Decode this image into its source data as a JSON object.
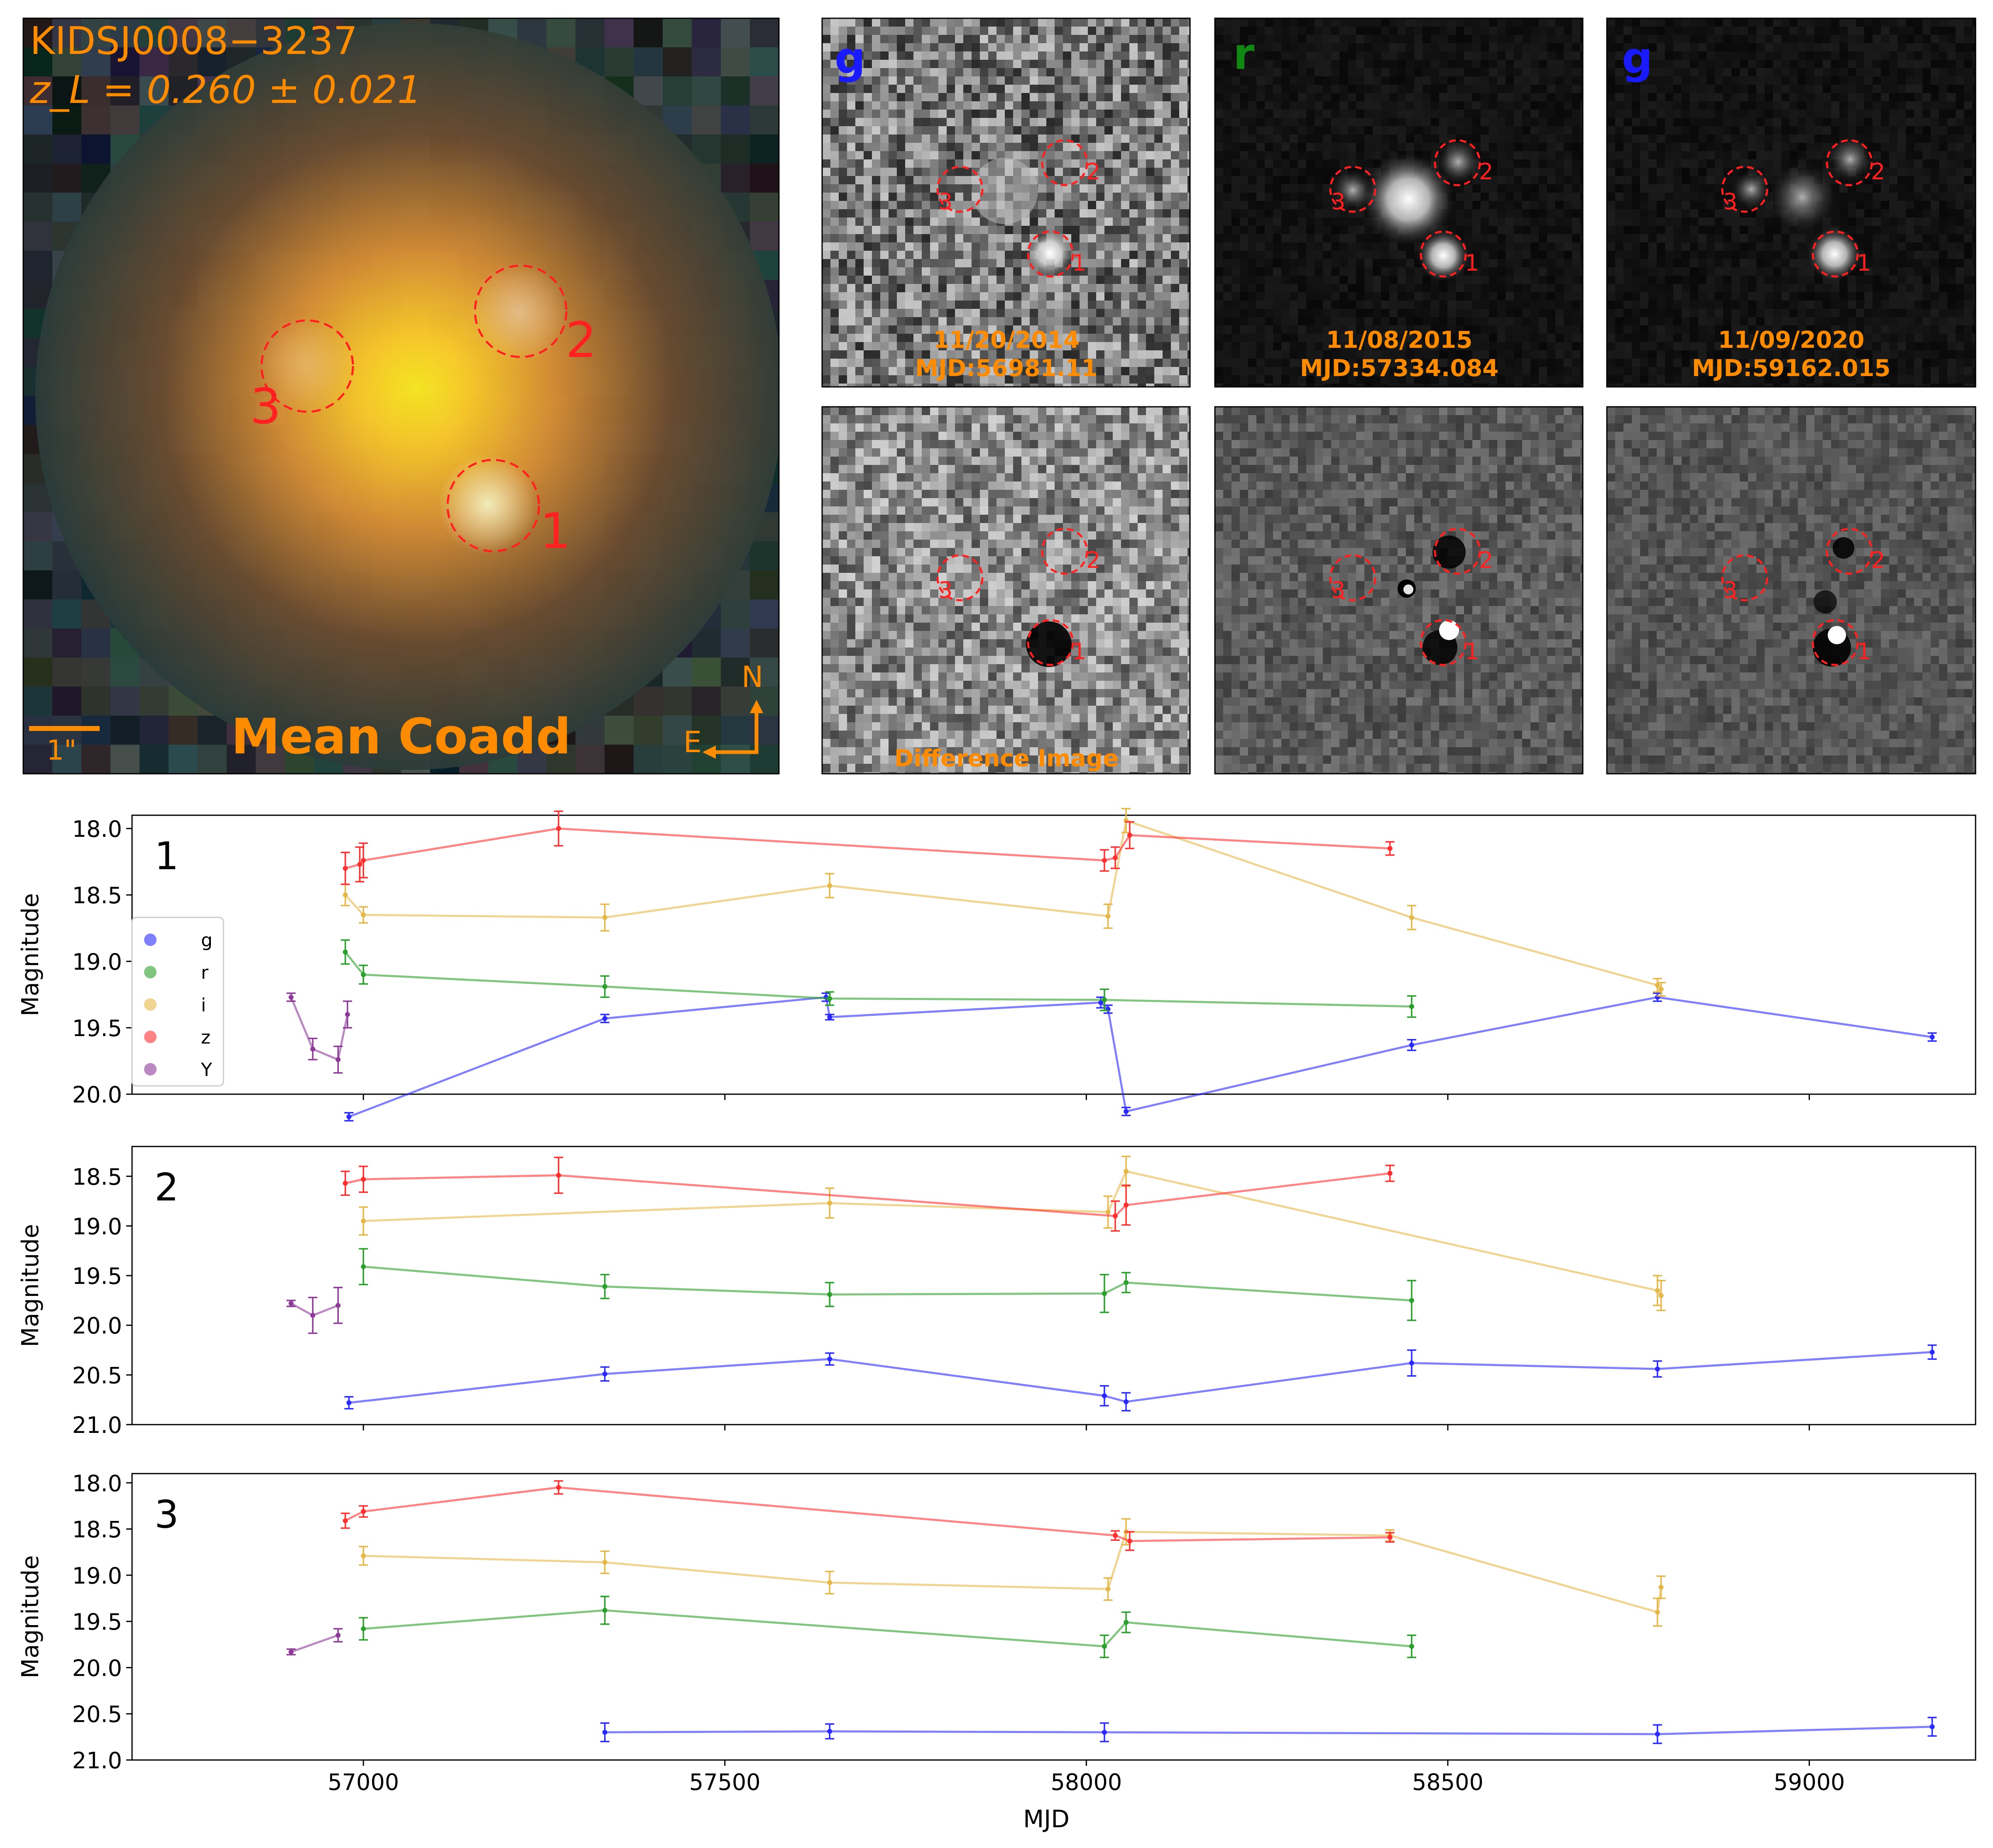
{
  "chart_data": [
    {
      "type": "image",
      "name_shown": "KIDSJ0008−3237",
      "redshift_label": "z_L = 0.260 ± 0.021",
      "panel_label": "Mean Coadd",
      "scale_label": "1\"",
      "compass": {
        "north": "N",
        "east": "E"
      },
      "markers": [
        "1",
        "2",
        "3"
      ],
      "colors": {
        "label": "#ff8c00",
        "marker": "#ff2020"
      }
    },
    {
      "type": "image",
      "band": "g",
      "band_color": "#1a1aff",
      "date": "11/20/2014",
      "mjd": "MJD:56981.11",
      "difference_label": "Difference Image",
      "markers": [
        "1",
        "2",
        "3"
      ]
    },
    {
      "type": "image",
      "band": "r",
      "band_color": "#118811",
      "date": "11/08/2015",
      "mjd": "MJD:57334.084",
      "markers": [
        "1",
        "2",
        "3"
      ]
    },
    {
      "type": "image",
      "band": "g",
      "band_color": "#1a1aff",
      "date": "11/09/2020",
      "mjd": "MJD:59162.015",
      "markers": [
        "1",
        "2",
        "3"
      ]
    },
    {
      "type": "line",
      "xlabel": "MJD",
      "ylabel": "Magnitude",
      "xlim": [
        56680,
        59230
      ],
      "x_ticks": [
        "57000",
        "57500",
        "58000",
        "58500",
        "59000"
      ],
      "legend": {
        "placement": "left",
        "entries": [
          "g",
          "r",
          "i",
          "z",
          "Y"
        ]
      },
      "band_colors": {
        "g": "#2b2bff",
        "r": "#2ca02c",
        "i": "#e6b84a",
        "z": "#ff3030",
        "Y": "#8e3a97"
      },
      "panels": [
        {
          "label": "1",
          "ylim": [
            20.0,
            17.9
          ],
          "y_ticks": [
            "18.0",
            "18.5",
            "19.0",
            "19.5",
            "20.0"
          ],
          "series": {
            "g": [
              [
                56980,
                20.17,
                0.03
              ],
              [
                57334,
                19.43,
                0.03
              ],
              [
                57640,
                19.27,
                0.03
              ],
              [
                57645,
                19.42,
                0.02
              ],
              [
                58020,
                19.31,
                0.04
              ],
              [
                58030,
                19.36,
                0.03
              ],
              [
                58055,
                20.13,
                0.03
              ],
              [
                58450,
                19.63,
                0.04
              ],
              [
                58790,
                19.27,
                0.03
              ],
              [
                59170,
                19.57,
                0.03
              ]
            ],
            "r": [
              [
                56975,
                18.93,
                0.09
              ],
              [
                57000,
                19.1,
                0.07
              ],
              [
                57334,
                19.19,
                0.08
              ],
              [
                57645,
                19.28,
                0.05
              ],
              [
                58025,
                19.29,
                0.08
              ],
              [
                58450,
                19.34,
                0.08
              ]
            ],
            "i": [
              [
                56975,
                18.5,
                0.08
              ],
              [
                57000,
                18.65,
                0.06
              ],
              [
                57334,
                18.67,
                0.1
              ],
              [
                57645,
                18.43,
                0.09
              ],
              [
                58030,
                18.66,
                0.09
              ],
              [
                58055,
                17.94,
                0.09
              ],
              [
                58450,
                18.67,
                0.09
              ],
              [
                58790,
                19.18,
                0.05
              ],
              [
                58795,
                19.21,
                0.05
              ]
            ],
            "z": [
              [
                56975,
                18.3,
                0.12
              ],
              [
                56995,
                18.27,
                0.13
              ],
              [
                57000,
                18.24,
                0.13
              ],
              [
                57270,
                18.0,
                0.13
              ],
              [
                58025,
                18.24,
                0.08
              ],
              [
                58040,
                18.22,
                0.08
              ],
              [
                58060,
                18.05,
                0.1
              ],
              [
                58420,
                18.15,
                0.05
              ]
            ],
            "Y": [
              [
                56900,
                19.27,
                0.03
              ],
              [
                56930,
                19.66,
                0.08
              ],
              [
                56965,
                19.74,
                0.1
              ],
              [
                56978,
                19.4,
                0.1
              ]
            ]
          }
        },
        {
          "label": "2",
          "ylim": [
            21.0,
            18.2
          ],
          "y_ticks": [
            "18.5",
            "19.0",
            "19.5",
            "20.0",
            "20.5",
            "21.0"
          ],
          "series": {
            "g": [
              [
                56980,
                20.78,
                0.06
              ],
              [
                57334,
                20.49,
                0.07
              ],
              [
                57645,
                20.34,
                0.06
              ],
              [
                58025,
                20.71,
                0.1
              ],
              [
                58055,
                20.77,
                0.09
              ],
              [
                58450,
                20.38,
                0.13
              ],
              [
                58790,
                20.44,
                0.08
              ],
              [
                59170,
                20.27,
                0.07
              ]
            ],
            "r": [
              [
                57000,
                19.41,
                0.18
              ],
              [
                57334,
                19.61,
                0.12
              ],
              [
                57645,
                19.69,
                0.12
              ],
              [
                58025,
                19.68,
                0.19
              ],
              [
                58055,
                19.57,
                0.1
              ],
              [
                58450,
                19.75,
                0.2
              ]
            ],
            "i": [
              [
                57000,
                18.95,
                0.14
              ],
              [
                57645,
                18.77,
                0.15
              ],
              [
                58030,
                18.86,
                0.16
              ],
              [
                58055,
                18.45,
                0.15
              ],
              [
                58790,
                19.65,
                0.15
              ],
              [
                58795,
                19.7,
                0.15
              ]
            ],
            "z": [
              [
                56975,
                18.57,
                0.12
              ],
              [
                57000,
                18.53,
                0.13
              ],
              [
                57270,
                18.49,
                0.18
              ],
              [
                58040,
                18.9,
                0.15
              ],
              [
                58055,
                18.79,
                0.2
              ],
              [
                58420,
                18.47,
                0.08
              ]
            ],
            "Y": [
              [
                56900,
                19.78,
                0.03
              ],
              [
                56930,
                19.9,
                0.18
              ],
              [
                56965,
                19.8,
                0.18
              ]
            ]
          }
        },
        {
          "label": "3",
          "ylim": [
            21.0,
            17.9
          ],
          "y_ticks": [
            "18.0",
            "18.5",
            "19.0",
            "19.5",
            "20.0",
            "20.5",
            "21.0"
          ],
          "series": {
            "g": [
              [
                57334,
                20.7,
                0.1
              ],
              [
                57645,
                20.69,
                0.08
              ],
              [
                58025,
                20.7,
                0.1
              ],
              [
                58790,
                20.72,
                0.1
              ],
              [
                59170,
                20.64,
                0.1
              ]
            ],
            "r": [
              [
                57000,
                19.58,
                0.12
              ],
              [
                57334,
                19.38,
                0.15
              ],
              [
                58025,
                19.77,
                0.12
              ],
              [
                58055,
                19.51,
                0.11
              ],
              [
                58450,
                19.77,
                0.12
              ]
            ],
            "i": [
              [
                57000,
                18.79,
                0.1
              ],
              [
                57334,
                18.86,
                0.12
              ],
              [
                57645,
                19.08,
                0.12
              ],
              [
                58030,
                19.15,
                0.12
              ],
              [
                58055,
                18.53,
                0.14
              ],
              [
                58420,
                18.57,
                0.06
              ],
              [
                58790,
                19.4,
                0.15
              ],
              [
                58795,
                19.13,
                0.12
              ]
            ],
            "z": [
              [
                56975,
                18.41,
                0.08
              ],
              [
                57000,
                18.31,
                0.06
              ],
              [
                57270,
                18.05,
                0.07
              ],
              [
                58040,
                18.57,
                0.05
              ],
              [
                58060,
                18.63,
                0.1
              ],
              [
                58420,
                18.59,
                0.05
              ]
            ],
            "Y": [
              [
                56900,
                19.83,
                0.03
              ],
              [
                56965,
                19.65,
                0.07
              ]
            ]
          }
        }
      ]
    }
  ]
}
